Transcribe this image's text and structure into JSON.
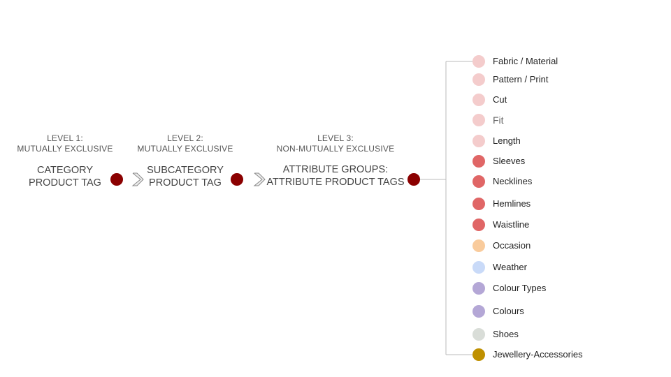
{
  "levels": [
    {
      "head1": "LEVEL 1:",
      "head2": "MUTUALLY EXCLUSIVE",
      "title1": "CATEGORY",
      "title2": "PRODUCT TAG"
    },
    {
      "head1": "LEVEL 2:",
      "head2": "MUTUALLY EXCLUSIVE",
      "title1": "SUBCATEGORY",
      "title2": "PRODUCT TAG"
    },
    {
      "head1": "LEVEL 3:",
      "head2": "NON-MUTUALLY EXCLUSIVE",
      "title1": "ATTRIBUTE GROUPS:",
      "title2": "ATTRIBUTE PRODUCT TAGS"
    }
  ],
  "colors": {
    "node": "#8b0000",
    "pink_light": "#f4cccc",
    "red": "#e06666",
    "orange": "#f9cb9c",
    "blue": "#c9daf8",
    "purple": "#b4a7d6",
    "grey": "#d9ddd8",
    "gold": "#bf9000"
  },
  "attributes": [
    {
      "label": "Fabric / Material",
      "color": "#f4cccc"
    },
    {
      "label": "Pattern / Print",
      "color": "#f4cccc"
    },
    {
      "label": "Cut",
      "color": "#f4cccc"
    },
    {
      "label": "Fit",
      "color": "#f4cccc"
    },
    {
      "label": "Length",
      "color": "#f4cccc"
    },
    {
      "label": "Sleeves",
      "color": "#e06666"
    },
    {
      "label": "Necklines",
      "color": "#e06666"
    },
    {
      "label": "Hemlines",
      "color": "#e06666"
    },
    {
      "label": "Waistline",
      "color": "#e06666"
    },
    {
      "label": "Occasion",
      "color": "#f9cb9c"
    },
    {
      "label": "Weather",
      "color": "#c9daf8"
    },
    {
      "label": "Colour Types",
      "color": "#b4a7d6"
    },
    {
      "label": "Colours",
      "color": "#b4a7d6"
    },
    {
      "label": "Shoes",
      "color": "#d9ddd8"
    },
    {
      "label": "Jewellery-Accessories",
      "color": "#bf9000"
    }
  ]
}
